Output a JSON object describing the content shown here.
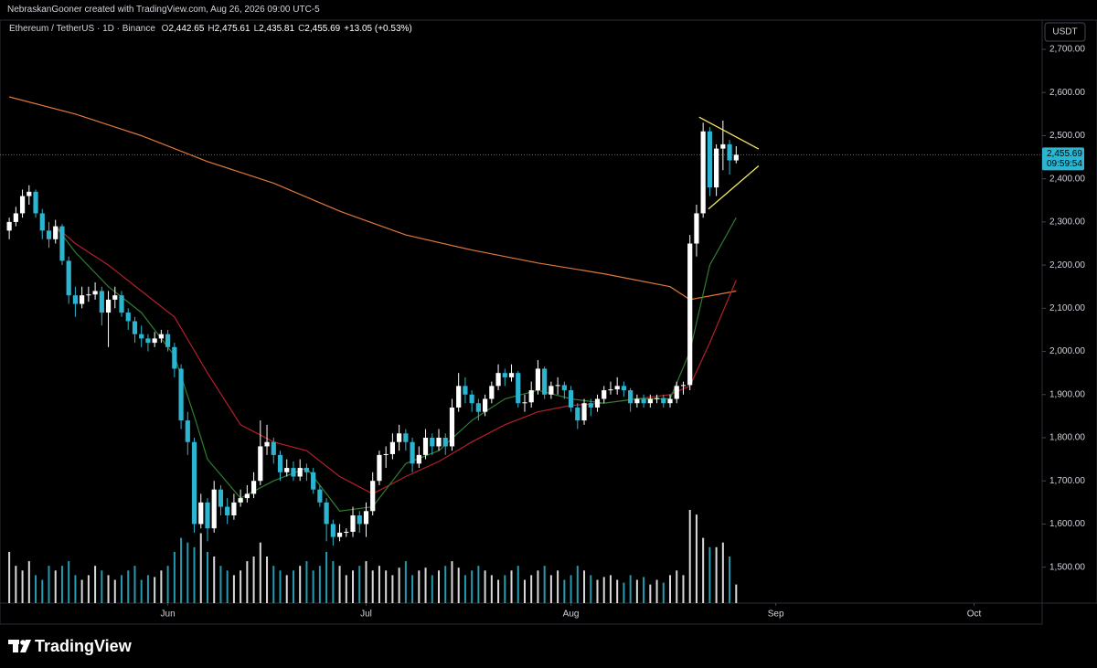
{
  "header": {
    "credit": "NebraskanGooner created with TradingView.com, Aug 26, 2026 09:00 UTC-5"
  },
  "chart_data": {
    "type": "candlestick",
    "symbol": "Ethereum / TetherUS · 1D · Binance",
    "ohlc_legend": [
      {
        "key": "O",
        "value": "2,442.65"
      },
      {
        "key": "H",
        "value": "2,475.61"
      },
      {
        "key": "L",
        "value": "2,435.81"
      },
      {
        "key": "C",
        "value": "2,455.69"
      }
    ],
    "change": "+13.05 (+0.53%)",
    "currency": "USDT",
    "up_color": "#ffffff",
    "down_color": "#2cb5d0",
    "grid": false,
    "xlim": [
      -1.4,
      156.3
    ],
    "xticks": [
      {
        "value": 24,
        "label": "Jun"
      },
      {
        "value": 54,
        "label": "Jul"
      },
      {
        "value": 85,
        "label": "Aug"
      },
      {
        "value": 116,
        "label": "Sep"
      },
      {
        "value": 146,
        "label": "Oct"
      }
    ],
    "ylim": [
      1416.7,
      2767.8
    ],
    "yticks": [
      {
        "value": 1500,
        "label": "1,500.00"
      },
      {
        "value": 1600,
        "label": "1,600.00"
      },
      {
        "value": 1700,
        "label": "1,700.00"
      },
      {
        "value": 1800,
        "label": "1,800.00"
      },
      {
        "value": 1900,
        "label": "1,900.00"
      },
      {
        "value": 2000,
        "label": "2,000.00"
      },
      {
        "value": 2100,
        "label": "2,100.00"
      },
      {
        "value": 2200,
        "label": "2,200.00"
      },
      {
        "value": 2300,
        "label": "2,300.00"
      },
      {
        "value": 2400,
        "label": "2,400.00"
      },
      {
        "value": 2500,
        "label": "2,500.00"
      },
      {
        "value": 2600,
        "label": "2,600.00"
      },
      {
        "value": 2700,
        "label": "2,700.00"
      }
    ],
    "ohlc": [
      [
        2280,
        2310,
        2260,
        2300
      ],
      [
        2300,
        2335,
        2290,
        2320
      ],
      [
        2320,
        2375,
        2310,
        2360
      ],
      [
        2360,
        2385,
        2340,
        2370
      ],
      [
        2370,
        2375,
        2310,
        2320
      ],
      [
        2320,
        2330,
        2260,
        2280
      ],
      [
        2280,
        2300,
        2240,
        2260
      ],
      [
        2260,
        2305,
        2250,
        2290
      ],
      [
        2290,
        2295,
        2200,
        2210
      ],
      [
        2210,
        2220,
        2110,
        2130
      ],
      [
        2130,
        2150,
        2080,
        2110
      ],
      [
        2110,
        2150,
        2100,
        2130
      ],
      [
        2130,
        2150,
        2115,
        2132
      ],
      [
        2132,
        2160,
        2120,
        2140
      ],
      [
        2140,
        2150,
        2060,
        2090
      ],
      [
        2090,
        2140,
        2010,
        2120
      ],
      [
        2120,
        2150,
        2100,
        2130
      ],
      [
        2130,
        2140,
        2080,
        2090
      ],
      [
        2090,
        2100,
        2050,
        2070
      ],
      [
        2070,
        2080,
        2020,
        2040
      ],
      [
        2040,
        2060,
        2010,
        2030
      ],
      [
        2030,
        2040,
        2000,
        2020
      ],
      [
        2020,
        2045,
        2010,
        2030
      ],
      [
        2030,
        2050,
        2020,
        2040
      ],
      [
        2040,
        2050,
        2000,
        2010
      ],
      [
        2010,
        2020,
        1940,
        1960
      ],
      [
        1960,
        1970,
        1820,
        1840
      ],
      [
        1840,
        1860,
        1760,
        1790
      ],
      [
        1790,
        1800,
        1580,
        1600
      ],
      [
        1600,
        1670,
        1590,
        1650
      ],
      [
        1650,
        1660,
        1560,
        1590
      ],
      [
        1590,
        1700,
        1580,
        1680
      ],
      [
        1680,
        1690,
        1620,
        1640
      ],
      [
        1640,
        1660,
        1600,
        1620
      ],
      [
        1620,
        1670,
        1610,
        1650
      ],
      [
        1650,
        1680,
        1640,
        1660
      ],
      [
        1660,
        1690,
        1650,
        1670
      ],
      [
        1670,
        1720,
        1660,
        1700
      ],
      [
        1700,
        1840,
        1690,
        1780
      ],
      [
        1780,
        1830,
        1760,
        1790
      ],
      [
        1790,
        1800,
        1740,
        1760
      ],
      [
        1760,
        1770,
        1700,
        1720
      ],
      [
        1720,
        1750,
        1710,
        1730
      ],
      [
        1730,
        1745,
        1700,
        1710
      ],
      [
        1710,
        1750,
        1700,
        1730
      ],
      [
        1730,
        1740,
        1700,
        1720
      ],
      [
        1720,
        1730,
        1670,
        1680
      ],
      [
        1680,
        1690,
        1640,
        1650
      ],
      [
        1650,
        1660,
        1560,
        1600
      ],
      [
        1600,
        1610,
        1550,
        1570
      ],
      [
        1570,
        1600,
        1560,
        1580
      ],
      [
        1580,
        1590,
        1570,
        1582
      ],
      [
        1582,
        1640,
        1570,
        1620
      ],
      [
        1620,
        1630,
        1580,
        1600
      ],
      [
        1600,
        1650,
        1570,
        1630
      ],
      [
        1630,
        1720,
        1620,
        1700
      ],
      [
        1700,
        1770,
        1690,
        1760
      ],
      [
        1760,
        1780,
        1730,
        1762
      ],
      [
        1762,
        1810,
        1750,
        1790
      ],
      [
        1790,
        1830,
        1770,
        1810
      ],
      [
        1810,
        1820,
        1770,
        1790
      ],
      [
        1790,
        1800,
        1720,
        1740
      ],
      [
        1740,
        1780,
        1730,
        1760
      ],
      [
        1760,
        1820,
        1750,
        1800
      ],
      [
        1800,
        1810,
        1760,
        1780
      ],
      [
        1780,
        1820,
        1770,
        1800
      ],
      [
        1800,
        1810,
        1760,
        1780
      ],
      [
        1780,
        1890,
        1770,
        1870
      ],
      [
        1870,
        1950,
        1860,
        1920
      ],
      [
        1920,
        1940,
        1880,
        1900
      ],
      [
        1900,
        1910,
        1860,
        1880
      ],
      [
        1880,
        1890,
        1840,
        1860
      ],
      [
        1860,
        1900,
        1850,
        1890
      ],
      [
        1890,
        1930,
        1880,
        1920
      ],
      [
        1920,
        1970,
        1910,
        1950
      ],
      [
        1950,
        1960,
        1920,
        1940
      ],
      [
        1940,
        1970,
        1930,
        1950
      ],
      [
        1950,
        1955,
        1870,
        1880
      ],
      [
        1880,
        1900,
        1860,
        1882
      ],
      [
        1882,
        1930,
        1870,
        1910
      ],
      [
        1910,
        1980,
        1900,
        1960
      ],
      [
        1960,
        1965,
        1890,
        1900
      ],
      [
        1900,
        1930,
        1890,
        1920
      ],
      [
        1920,
        1940,
        1900,
        1922
      ],
      [
        1922,
        1930,
        1890,
        1910
      ],
      [
        1910,
        1920,
        1860,
        1870
      ],
      [
        1870,
        1880,
        1820,
        1840
      ],
      [
        1840,
        1890,
        1830,
        1880
      ],
      [
        1880,
        1890,
        1850,
        1870
      ],
      [
        1870,
        1900,
        1860,
        1890
      ],
      [
        1890,
        1920,
        1880,
        1910
      ],
      [
        1910,
        1930,
        1900,
        1912
      ],
      [
        1912,
        1940,
        1900,
        1920
      ],
      [
        1920,
        1930,
        1895,
        1910
      ],
      [
        1910,
        1915,
        1860,
        1880
      ],
      [
        1880,
        1900,
        1870,
        1890
      ],
      [
        1890,
        1900,
        1870,
        1880
      ],
      [
        1880,
        1900,
        1870,
        1890
      ],
      [
        1890,
        1900,
        1880,
        1892
      ],
      [
        1892,
        1900,
        1870,
        1880
      ],
      [
        1880,
        1900,
        1870,
        1890
      ],
      [
        1890,
        1930,
        1880,
        1920
      ],
      [
        1920,
        1930,
        1900,
        1922
      ],
      [
        1922,
        2270,
        1910,
        2250
      ],
      [
        2250,
        2340,
        2220,
        2320
      ],
      [
        2320,
        2530,
        2310,
        2510
      ],
      [
        2510,
        2520,
        2360,
        2380
      ],
      [
        2380,
        2480,
        2360,
        2470
      ],
      [
        2470,
        2535,
        2420,
        2480
      ],
      [
        2480,
        2490,
        2410,
        2442.65
      ],
      [
        2442.65,
        2475.61,
        2435.81,
        2455.69
      ]
    ],
    "volume": [
      55,
      40,
      35,
      45,
      30,
      25,
      40,
      35,
      40,
      45,
      30,
      25,
      30,
      40,
      35,
      30,
      25,
      30,
      35,
      40,
      25,
      30,
      28,
      35,
      40,
      55,
      70,
      65,
      60,
      75,
      55,
      50,
      40,
      35,
      30,
      35,
      45,
      50,
      65,
      50,
      40,
      35,
      30,
      35,
      40,
      45,
      35,
      40,
      55,
      45,
      40,
      30,
      35,
      40,
      45,
      35,
      40,
      35,
      30,
      38,
      45,
      30,
      35,
      38,
      30,
      35,
      40,
      45,
      38,
      30,
      35,
      40,
      35,
      30,
      25,
      30,
      35,
      40,
      25,
      30,
      35,
      40,
      30,
      35,
      25,
      30,
      40,
      35,
      30,
      25,
      28,
      30,
      25,
      22,
      30,
      25,
      28,
      20,
      25,
      22,
      30,
      35,
      30,
      100,
      95,
      70,
      60,
      60,
      65,
      50,
      20
    ],
    "series": [
      {
        "color": "#e0773a",
        "x": [
          0,
          10,
          20,
          30,
          40,
          50,
          60,
          70,
          80,
          90,
          100,
          103,
          110
        ],
        "values": [
          2590,
          2550,
          2500,
          2440,
          2390,
          2325,
          2270,
          2235,
          2205,
          2180,
          2150,
          2120,
          2140
        ]
      },
      {
        "color": "#b3202a",
        "x": [
          7,
          10,
          15,
          20,
          25,
          30,
          35,
          40,
          45,
          50,
          55,
          60,
          65,
          70,
          75,
          80,
          85,
          90,
          95,
          100,
          103,
          106,
          110
        ],
        "values": [
          2290,
          2250,
          2200,
          2140,
          2080,
          1950,
          1830,
          1790,
          1770,
          1710,
          1670,
          1710,
          1745,
          1790,
          1830,
          1860,
          1875,
          1880,
          1890,
          1900,
          1920,
          2020,
          2165
        ]
      },
      {
        "color": "#2e7d32",
        "x": [
          7,
          10,
          15,
          20,
          25,
          28,
          30,
          35,
          40,
          45,
          50,
          55,
          58,
          60,
          65,
          70,
          75,
          80,
          85,
          90,
          95,
          100,
          103,
          106,
          110
        ],
        "values": [
          2290,
          2230,
          2150,
          2090,
          1990,
          1850,
          1750,
          1660,
          1700,
          1730,
          1630,
          1640,
          1700,
          1740,
          1770,
          1840,
          1890,
          1910,
          1890,
          1880,
          1890,
          1890,
          2000,
          2200,
          2310
        ]
      }
    ],
    "trendlines": [
      {
        "x": [
          104.4,
          113.4
        ],
        "values": [
          2543,
          2469
        ]
      },
      {
        "x": [
          105.8,
          113.4
        ],
        "values": [
          2330,
          2430
        ]
      }
    ],
    "trendline_color": "#f5e663",
    "last_price_label": "2,455.69",
    "countdown": "09:59:54"
  },
  "footer": {
    "brand": "TradingView"
  }
}
